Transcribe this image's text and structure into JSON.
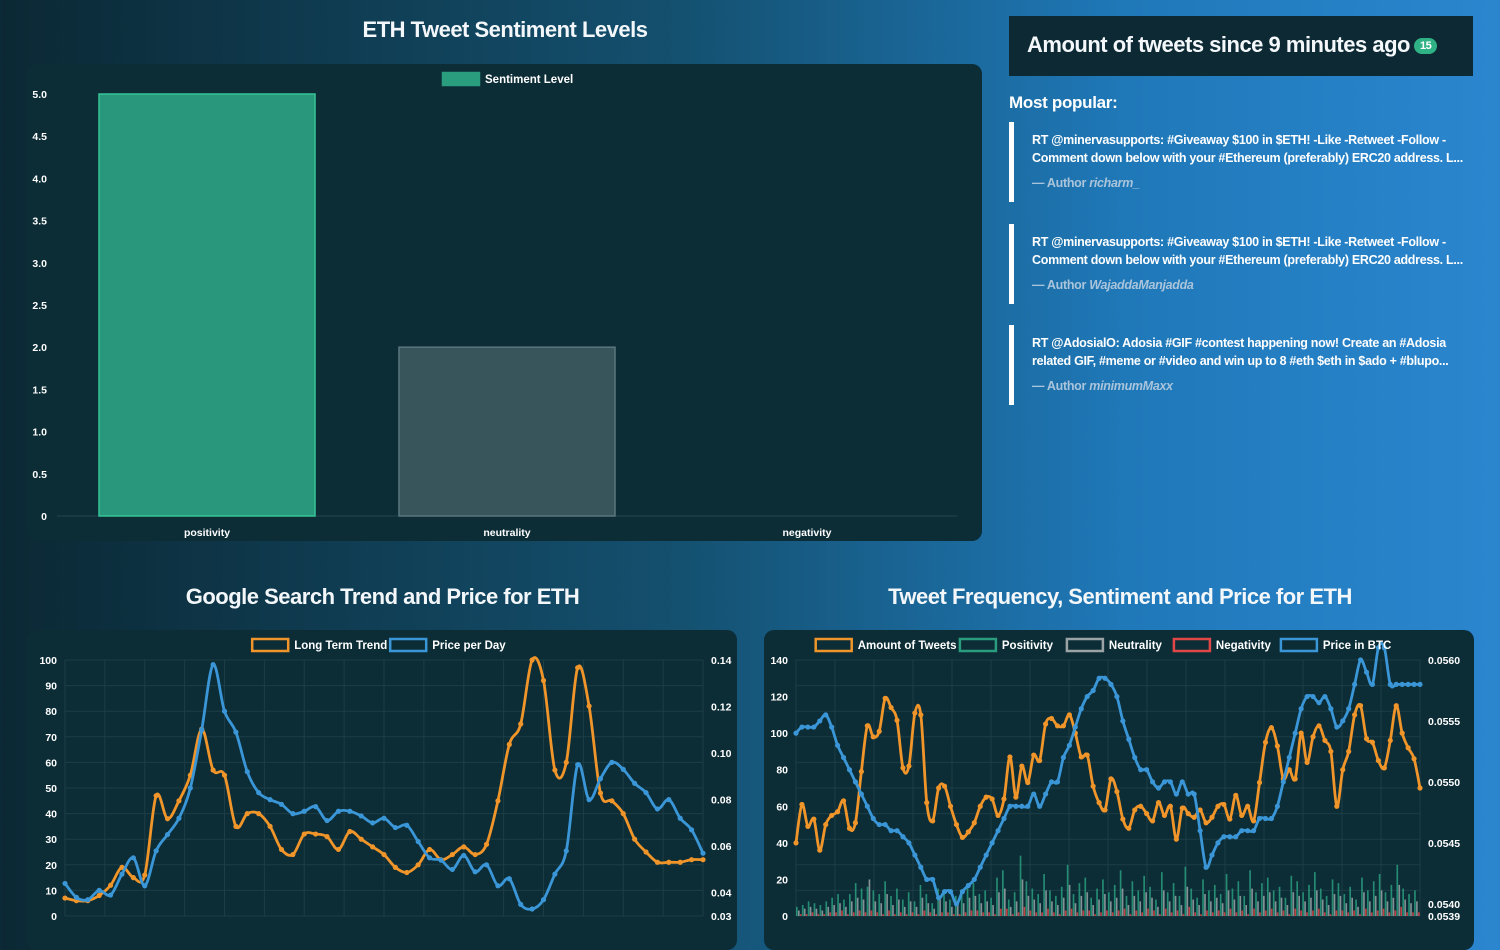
{
  "titles": {
    "sentiment": "ETH Tweet Sentiment Levels",
    "google": "Google Search Trend and Price for ETH",
    "frequency": "Tweet Frequency, Sentiment and Price for ETH"
  },
  "tweet_count": {
    "text": "Amount of tweets since 9 minutes ago",
    "badge": "15"
  },
  "popular": {
    "title": "Most popular:",
    "author_prefix": "— Author",
    "tweets": [
      {
        "text": "RT @minervasupports: #Giveaway $100 in $ETH! -Like -Retweet -Follow -Comment down below with your #Ethereum (preferably) ERC20 address. L...",
        "author": "richarm_"
      },
      {
        "text": "RT @minervasupports: #Giveaway $100 in $ETH! -Like -Retweet -Follow -Comment down below with your #Ethereum (preferably) ERC20 address. L...",
        "author": "WajaddaManjadda"
      },
      {
        "text": "RT @AdosialO: Adosia #GIF #contest happening now! Create an #Adosia related GIF, #meme or #video and win up to 8 #eth $eth in $ado + #blupo...",
        "author": "minimumMaxx"
      }
    ]
  },
  "colors": {
    "green": "#2a9d7f",
    "grey": "#3a575e",
    "orange": "#f0952a",
    "blue": "#3a96d6",
    "red": "#e04848",
    "gray_line": "#9aa3a6"
  },
  "chart_data": [
    {
      "id": "sentiment",
      "type": "bar",
      "categories": [
        "positivity",
        "neutrality",
        "negativity"
      ],
      "series": [
        {
          "name": "Sentiment Level",
          "values": [
            5.0,
            2.0,
            0
          ]
        }
      ],
      "ylim": [
        0,
        5.0
      ],
      "yticks": [
        "0",
        "0.5",
        "1.0",
        "1.5",
        "2.0",
        "2.5",
        "3.0",
        "3.5",
        "4.0",
        "4.5",
        "5.0"
      ],
      "legend": "top-center"
    },
    {
      "id": "google",
      "type": "line",
      "legend": "top-center",
      "y_left": {
        "lim": [
          0,
          100
        ],
        "ticks": [
          "0",
          "10",
          "20",
          "30",
          "40",
          "50",
          "60",
          "70",
          "80",
          "90",
          "100"
        ]
      },
      "y_right": {
        "lim": [
          0.03,
          0.14
        ],
        "ticks": [
          "0.03",
          "0.04",
          "0.06",
          "0.08",
          "0.10",
          "0.12",
          "0.14"
        ]
      },
      "series": [
        {
          "name": "Long Term Trend",
          "axis": "left",
          "values": [
            7,
            6,
            6,
            8,
            12,
            19,
            15,
            16,
            47,
            38,
            45,
            55,
            73,
            57,
            55,
            35,
            40,
            40,
            35,
            26,
            24,
            32,
            32,
            31,
            26,
            33,
            30,
            27,
            24,
            19,
            17,
            20,
            26,
            22,
            24,
            27,
            24,
            28,
            45,
            67,
            75,
            100,
            92,
            57,
            60,
            97,
            82,
            48,
            45,
            40,
            30,
            25,
            21,
            21,
            21,
            22,
            22
          ]
        },
        {
          "name": "Price per Day",
          "axis": "right",
          "values": [
            0.044,
            0.038,
            0.037,
            0.041,
            0.039,
            0.048,
            0.055,
            0.043,
            0.058,
            0.065,
            0.072,
            0.085,
            0.11,
            0.138,
            0.118,
            0.109,
            0.092,
            0.083,
            0.08,
            0.078,
            0.074,
            0.075,
            0.077,
            0.071,
            0.075,
            0.075,
            0.073,
            0.07,
            0.072,
            0.068,
            0.069,
            0.062,
            0.055,
            0.054,
            0.05,
            0.056,
            0.049,
            0.052,
            0.043,
            0.046,
            0.035,
            0.033,
            0.037,
            0.048,
            0.058,
            0.095,
            0.08,
            0.089,
            0.096,
            0.093,
            0.087,
            0.083,
            0.076,
            0.08,
            0.072,
            0.067,
            0.057
          ]
        }
      ]
    },
    {
      "id": "frequency",
      "type": "line",
      "legend": "top-center",
      "y_left": {
        "lim": [
          0,
          140
        ],
        "ticks": [
          "0",
          "20",
          "40",
          "60",
          "80",
          "100",
          "120",
          "140"
        ]
      },
      "y_right": {
        "lim": [
          0.0539,
          0.056
        ],
        "ticks": [
          "0.0539",
          "0.0540",
          "0.0545",
          "0.0550",
          "0.0555",
          "0.0560"
        ]
      },
      "series": [
        {
          "name": "Amount of Tweets",
          "axis": "left",
          "values": [
            40,
            61,
            49,
            53,
            36,
            50,
            55,
            57,
            63,
            48,
            51,
            79,
            104,
            98,
            101,
            119,
            114,
            107,
            81,
            82,
            111,
            110,
            62,
            52,
            70,
            71,
            60,
            50,
            43,
            46,
            51,
            60,
            65,
            64,
            55,
            64,
            87,
            65,
            82,
            73,
            88,
            85,
            105,
            108,
            104,
            104,
            110,
            100,
            87,
            88,
            71,
            62,
            58,
            75,
            68,
            53,
            48,
            58,
            60,
            56,
            52,
            62,
            55,
            60,
            42,
            59,
            56,
            54,
            58,
            51,
            54,
            60,
            61,
            53,
            66,
            55,
            60,
            52,
            73,
            95,
            103,
            93,
            75,
            80,
            75,
            100,
            84,
            98,
            104,
            96,
            90,
            60,
            80,
            90,
            110,
            115,
            97,
            95,
            85,
            81,
            96,
            115,
            100,
            92,
            86,
            70
          ]
        },
        {
          "name": "Positivity",
          "axis": "left",
          "values": [
            5,
            6,
            8,
            7,
            6,
            8,
            10,
            12,
            9,
            12,
            18,
            15,
            16,
            14,
            12,
            19,
            11,
            15,
            9,
            13,
            8,
            17,
            12,
            7,
            15,
            14,
            9,
            11,
            12,
            16,
            18,
            12,
            14,
            10,
            21,
            25,
            9,
            13,
            33,
            19,
            15,
            12,
            23,
            14,
            11,
            16,
            28,
            12,
            18,
            21,
            10,
            15,
            20,
            13,
            17,
            25,
            11,
            19,
            14,
            22,
            16,
            9,
            24,
            13,
            18,
            11,
            27,
            15,
            10,
            20,
            14,
            17,
            12,
            23,
            15,
            19,
            11,
            25,
            13,
            18,
            21,
            14,
            16,
            10,
            22,
            19,
            13,
            17,
            24,
            15,
            11,
            20,
            18,
            12,
            16,
            9,
            21,
            14,
            19,
            23,
            13,
            17,
            28,
            15,
            12,
            14
          ]
        },
        {
          "name": "Neutrality",
          "axis": "left",
          "values": [
            3,
            4,
            5,
            4,
            3,
            5,
            6,
            7,
            5,
            8,
            10,
            9,
            20,
            8,
            7,
            12,
            6,
            9,
            5,
            8,
            5,
            10,
            7,
            4,
            9,
            8,
            5,
            6,
            7,
            10,
            11,
            7,
            8,
            6,
            13,
            15,
            5,
            8,
            20,
            11,
            9,
            7,
            14,
            8,
            6,
            10,
            17,
            7,
            11,
            13,
            6,
            9,
            12,
            8,
            10,
            15,
            6,
            11,
            8,
            13,
            10,
            5,
            14,
            8,
            11,
            6,
            16,
            9,
            6,
            12,
            8,
            10,
            7,
            14,
            9,
            11,
            6,
            15,
            8,
            11,
            13,
            8,
            10,
            6,
            13,
            11,
            8,
            10,
            14,
            9,
            6,
            12,
            11,
            7,
            10,
            5,
            13,
            8,
            11,
            14,
            8,
            10,
            17,
            9,
            7,
            8
          ]
        },
        {
          "name": "Negativity",
          "axis": "left",
          "values": [
            1,
            1,
            2,
            1,
            1,
            2,
            2,
            3,
            1,
            2,
            3,
            2,
            3,
            2,
            1,
            3,
            1,
            2,
            1,
            2,
            1,
            3,
            2,
            1,
            2,
            2,
            1,
            1,
            2,
            3,
            3,
            2,
            2,
            1,
            4,
            4,
            1,
            2,
            5,
            3,
            2,
            2,
            4,
            2,
            1,
            3,
            4,
            2,
            3,
            3,
            1,
            2,
            3,
            2,
            3,
            4,
            1,
            3,
            2,
            4,
            3,
            1,
            4,
            2,
            3,
            1,
            5,
            2,
            1,
            3,
            2,
            3,
            2,
            4,
            2,
            3,
            1,
            4,
            2,
            3,
            4,
            2,
            3,
            1,
            4,
            3,
            2,
            3,
            4,
            2,
            1,
            3,
            3,
            2,
            3,
            1,
            4,
            2,
            3,
            4,
            2,
            3,
            5,
            2,
            2,
            2
          ]
        },
        {
          "name": "Price in BTC",
          "axis": "right",
          "values": [
            0.0554,
            0.05545,
            0.05545,
            0.05545,
            0.0555,
            0.05555,
            0.05545,
            0.0553,
            0.0552,
            0.0551,
            0.055,
            0.0549,
            0.0548,
            0.0547,
            0.05465,
            0.05465,
            0.0546,
            0.0546,
            0.05455,
            0.0545,
            0.0544,
            0.0543,
            0.0542,
            0.0542,
            0.05405,
            0.0541,
            0.0541,
            0.054,
            0.0541,
            0.05415,
            0.0542,
            0.0543,
            0.0544,
            0.0545,
            0.0546,
            0.0547,
            0.0548,
            0.0548,
            0.0548,
            0.0548,
            0.0549,
            0.0548,
            0.0549,
            0.055,
            0.055,
            0.0552,
            0.0553,
            0.05545,
            0.0556,
            0.0557,
            0.05575,
            0.05585,
            0.05585,
            0.0558,
            0.0557,
            0.0555,
            0.05535,
            0.0552,
            0.0551,
            0.0551,
            0.055,
            0.05495,
            0.055,
            0.055,
            0.0549,
            0.055,
            0.0549,
            0.0549,
            0.0546,
            0.0543,
            0.0544,
            0.0545,
            0.05455,
            0.05455,
            0.05455,
            0.0546,
            0.0546,
            0.0546,
            0.0547,
            0.0547,
            0.0547,
            0.0548,
            0.055,
            0.0552,
            0.0554,
            0.0556,
            0.0557,
            0.0557,
            0.05565,
            0.0557,
            0.0556,
            0.05545,
            0.0555,
            0.0556,
            0.0558,
            0.056,
            0.0559,
            0.0558,
            0.0561,
            0.0561,
            0.0558,
            0.0558,
            0.0558,
            0.0558,
            0.0558,
            0.0558
          ]
        }
      ]
    }
  ]
}
